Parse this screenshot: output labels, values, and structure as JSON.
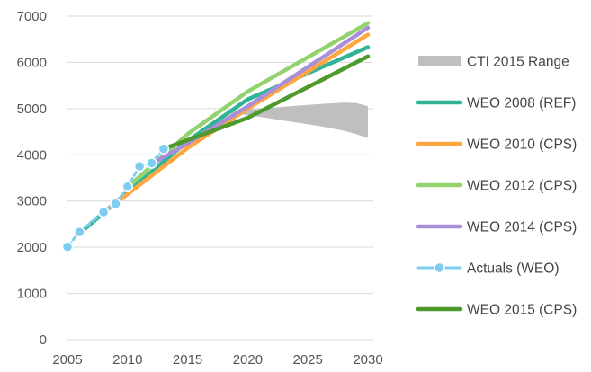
{
  "chart_data": {
    "type": "line",
    "xlim": [
      2005,
      2030
    ],
    "ylim": [
      0,
      7000
    ],
    "x_ticks": [
      "2005",
      "2010",
      "2015",
      "2020",
      "2025",
      "2030"
    ],
    "y_ticks": [
      "0",
      "1000",
      "2000",
      "3000",
      "4000",
      "5000",
      "6000",
      "7000"
    ],
    "grid": "horizontal",
    "legend_position": "right",
    "range_band": {
      "name": "CTI 2015 Range",
      "color": "#bfbfbf",
      "x": [
        2018,
        2020,
        2022,
        2024,
        2026,
        2028,
        2029,
        2030
      ],
      "upper": [
        4900,
        4980,
        5020,
        5060,
        5100,
        5130,
        5120,
        5050
      ],
      "lower": [
        4900,
        4860,
        4780,
        4700,
        4620,
        4520,
        4450,
        4360
      ]
    },
    "series": [
      {
        "name": "WEO 2008 (REF)",
        "color": "#2fb596",
        "x": [
          2006,
          2015,
          2020,
          2030
        ],
        "values": [
          2300,
          4300,
          5200,
          6330
        ]
      },
      {
        "name": "WEO 2010 (CPS)",
        "color": "#ffa640",
        "x": [
          2008,
          2015,
          2020,
          2030
        ],
        "values": [
          2750,
          4150,
          5000,
          6600
        ]
      },
      {
        "name": "WEO 2012 (CPS)",
        "color": "#92d36e",
        "x": [
          2010,
          2015,
          2020,
          2030
        ],
        "values": [
          3300,
          4450,
          5370,
          6850
        ]
      },
      {
        "name": "WEO 2014 (CPS)",
        "color": "#a98fd8",
        "x": [
          2012,
          2015,
          2020,
          2030
        ],
        "values": [
          3800,
          4250,
          5050,
          6750
        ]
      },
      {
        "name": "Actuals (WEO)",
        "color": "#7ccdf0",
        "markers": true,
        "x": [
          2005,
          2006,
          2008,
          2009,
          2010,
          2011,
          2012,
          2013
        ],
        "values": [
          2010,
          2330,
          2760,
          2940,
          3310,
          3750,
          3820,
          4130
        ]
      },
      {
        "name": "WEO 2015 (CPS)",
        "color": "#4e9a2c",
        "x": [
          2013,
          2015,
          2020,
          2030
        ],
        "values": [
          4130,
          4320,
          4800,
          6130
        ]
      }
    ],
    "legend": [
      "CTI 2015 Range",
      "WEO 2008 (REF)",
      "WEO 2010 (CPS)",
      "WEO 2012 (CPS)",
      "WEO 2014 (CPS)",
      "Actuals (WEO)",
      "WEO 2015 (CPS)"
    ]
  }
}
